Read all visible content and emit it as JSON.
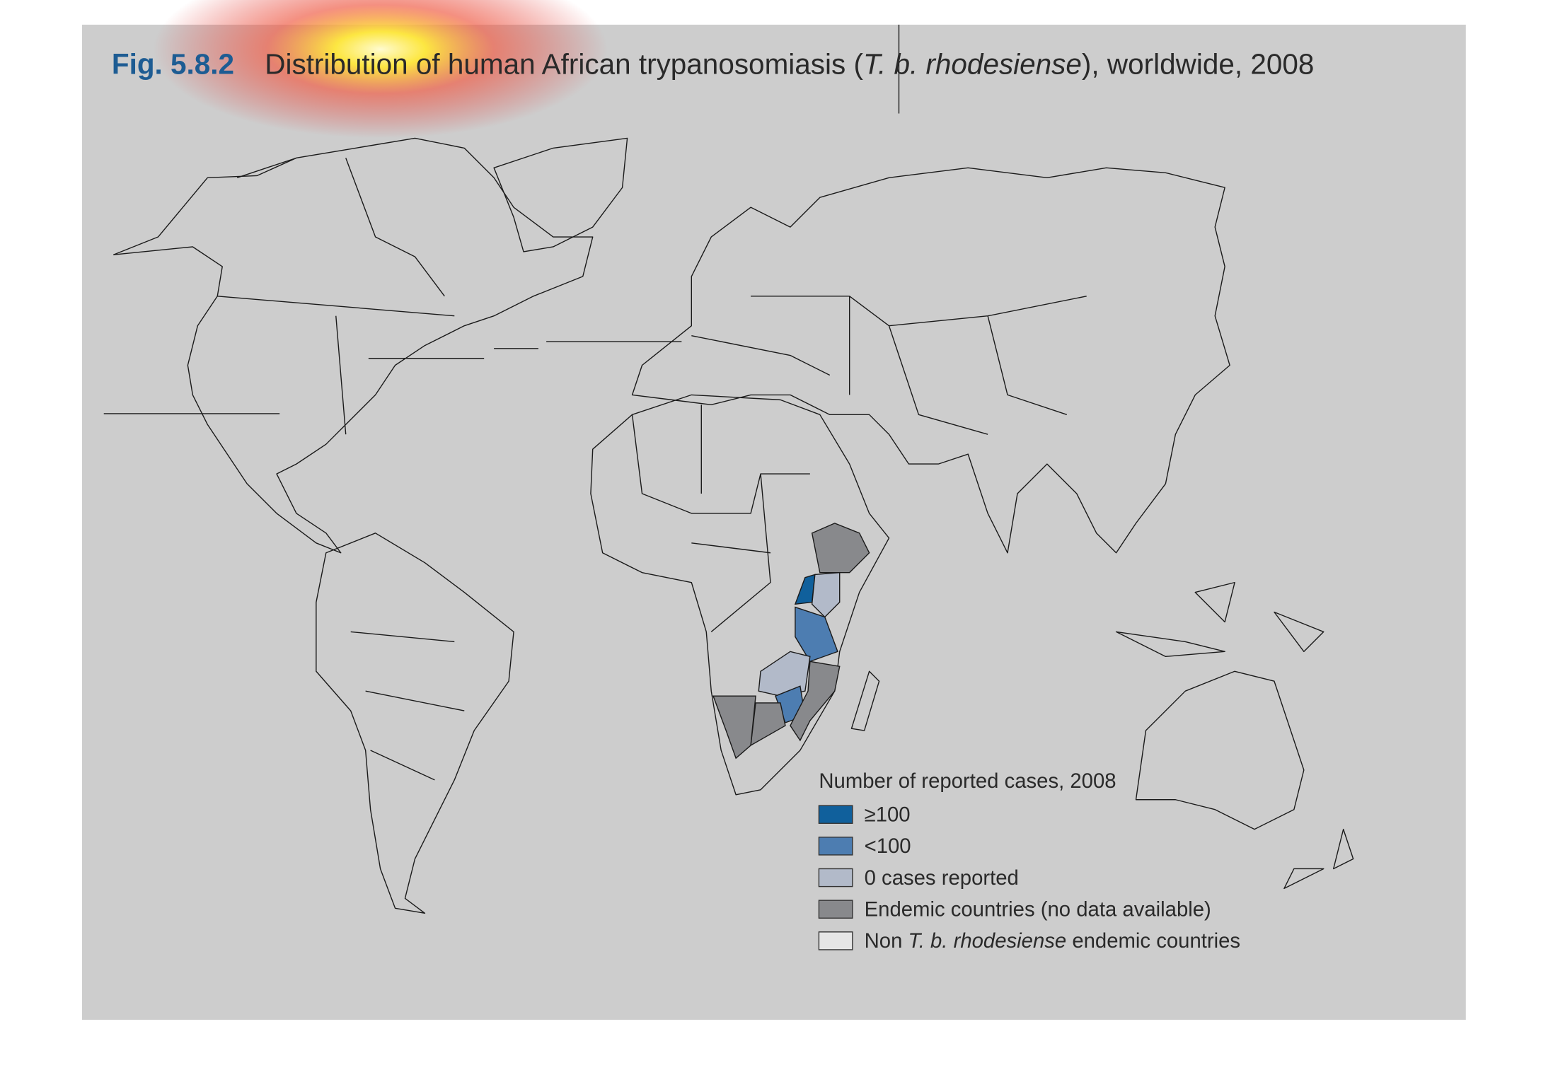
{
  "header": {
    "figure_number": "Fig. 5.8.2",
    "title": [
      "Distribution of human African trypanosomiasis (",
      "T. b. rhodesiense",
      "), worldwide, 2008"
    ]
  },
  "legend": {
    "title": "Number of reported cases, 2008",
    "entries": [
      {
        "label": [
          "≥100"
        ],
        "color": "#10609c"
      },
      {
        "label": [
          "<100"
        ],
        "color": "#4d7db1"
      },
      {
        "label": [
          "0 cases reported"
        ],
        "color": "#b2bac9"
      },
      {
        "label": [
          "Endemic countries (no data available)"
        ],
        "color": "#88898c"
      },
      {
        "label": [
          "Non ",
          "T. b. rhodesiense",
          " endemic countries"
        ],
        "color": "#e6e6e6"
      }
    ]
  }
}
